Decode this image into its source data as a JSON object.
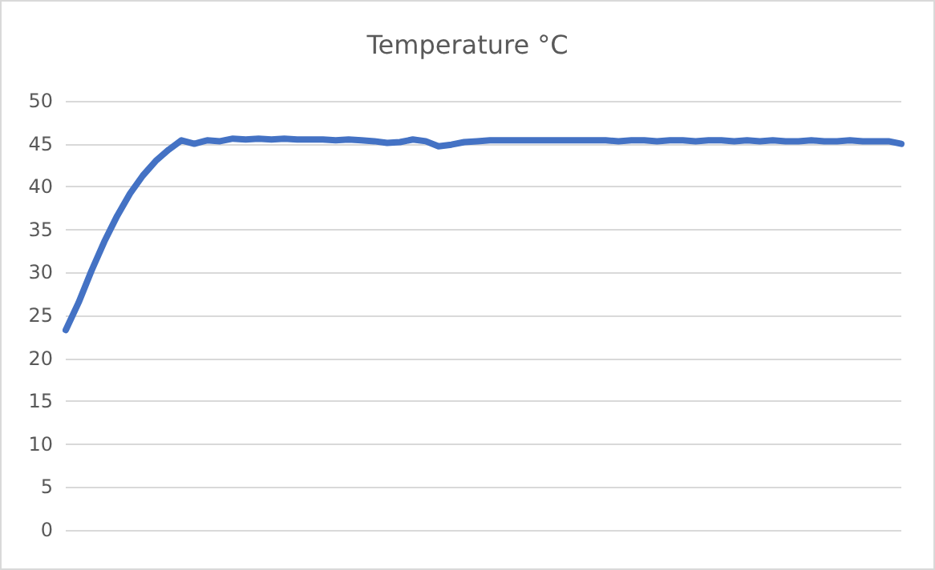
{
  "chart_data": {
    "type": "line",
    "title": "Temperature °C",
    "categories": [
      null,
      null,
      null,
      null,
      null,
      null,
      null,
      null,
      null,
      null,
      null,
      null,
      null,
      null,
      null,
      null,
      null,
      null,
      null,
      null,
      null,
      null,
      null,
      null,
      null,
      null,
      null,
      null,
      null,
      null,
      null,
      null,
      null,
      null,
      null,
      null,
      null,
      null,
      null,
      null,
      null,
      null,
      null,
      null,
      null,
      null,
      null,
      null,
      null,
      null,
      null,
      null,
      null,
      null,
      null,
      null,
      null,
      null,
      null,
      null,
      null,
      null,
      null,
      null,
      null,
      null
    ],
    "series": [
      {
        "color": "#4472c4",
        "values": [
          23.3,
          26.5,
          30.2,
          33.6,
          36.6,
          39.2,
          41.3,
          43.0,
          44.3,
          45.4,
          45.0,
          45.4,
          45.3,
          45.6,
          45.5,
          45.6,
          45.5,
          45.6,
          45.5,
          45.5,
          45.5,
          45.4,
          45.5,
          45.4,
          45.3,
          45.1,
          45.2,
          45.5,
          45.3,
          44.7,
          44.9,
          45.2,
          45.3,
          45.4,
          45.4,
          45.4,
          45.4,
          45.4,
          45.4,
          45.4,
          45.4,
          45.4,
          45.4,
          45.3,
          45.4,
          45.4,
          45.3,
          45.4,
          45.4,
          45.3,
          45.4,
          45.4,
          45.3,
          45.4,
          45.3,
          45.4,
          45.3,
          45.3,
          45.4,
          45.3,
          45.3,
          45.4,
          45.3,
          45.3,
          45.3,
          45.0
        ]
      }
    ],
    "ylim": [
      0,
      50
    ],
    "yticks": [
      0,
      5,
      10,
      15,
      20,
      25,
      30,
      35,
      40,
      45,
      50
    ],
    "grid": "y",
    "marker": "none",
    "line_style": "solid"
  }
}
